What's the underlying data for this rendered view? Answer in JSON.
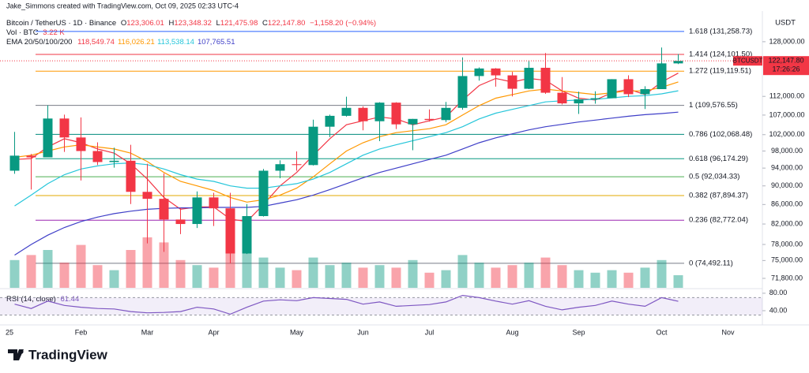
{
  "header": {
    "credit": "Jake_Simmons created with TradingView.com, Oct 09, 2025 02:33 UTC-4",
    "symbol": "Bitcoin / TetherUS · 1D · Binance",
    "ohlc": [
      "O",
      "123,306.01",
      "H",
      "123,348.32",
      "L",
      "121,475.98",
      "C",
      "122,147.80",
      "−1,158.20 (−0.94%)"
    ],
    "volume_label": "Vol · BTC",
    "volume_value": "3.22 K",
    "currency": "USDT"
  },
  "footer": {
    "logo": "TradingView"
  },
  "chart_data": {
    "type": "candlestick",
    "log_scale": true,
    "up_color": "#089981",
    "down_color": "#f23645",
    "categories": [
      "25",
      null,
      null,
      null,
      "Feb",
      null,
      null,
      null,
      "Mar",
      null,
      null,
      null,
      "Apr",
      null,
      null,
      null,
      null,
      "May",
      null,
      null,
      null,
      "Jun",
      null,
      null,
      null,
      "Jul",
      null,
      null,
      null,
      null,
      "Aug",
      null,
      null,
      null,
      "Sep",
      null,
      null,
      null,
      null,
      "Oct",
      null,
      null,
      null,
      "Nov"
    ],
    "open": [
      93400,
      96900,
      96500,
      106100,
      101300,
      98000,
      95400,
      95700,
      88700,
      87200,
      82900,
      82000,
      87500,
      85200,
      76300,
      83600,
      93400,
      94900,
      94700,
      104000,
      106800,
      108900,
      105400,
      110300,
      104600,
      106000,
      105700,
      108900,
      117700,
      119900,
      117900,
      114100,
      120100,
      113000,
      110100,
      111200,
      111500,
      116800,
      112600,
      114000,
      121400,
      null,
      null,
      null
    ],
    "high": [
      102700,
      97300,
      109600,
      107100,
      106400,
      100100,
      98800,
      99500,
      95000,
      92800,
      85300,
      88800,
      88500,
      88500,
      86100,
      93800,
      95800,
      97900,
      105800,
      107100,
      111900,
      109300,
      110400,
      110400,
      106000,
      108500,
      110500,
      123200,
      120200,
      120000,
      118900,
      122300,
      124500,
      117400,
      113300,
      113400,
      116800,
      117900,
      114800,
      126200,
      124200,
      null,
      null,
      null
    ],
    "low": [
      92700,
      89200,
      96500,
      97800,
      91200,
      94700,
      94100,
      86100,
      78200,
      76600,
      80000,
      81200,
      81600,
      74500,
      76200,
      83500,
      91700,
      93400,
      94600,
      101400,
      106600,
      103100,
      100400,
      103400,
      98200,
      105300,
      105200,
      108400,
      116400,
      114700,
      112000,
      114000,
      112700,
      109800,
      107300,
      110000,
      111500,
      111800,
      108600,
      114000,
      121200,
      null,
      null,
      null
    ],
    "close": [
      96900,
      96500,
      106100,
      101300,
      98000,
      95400,
      95700,
      88700,
      87200,
      82900,
      82000,
      87500,
      85200,
      76300,
      83600,
      93400,
      94900,
      94700,
      104000,
      106800,
      108900,
      105400,
      110300,
      104600,
      106000,
      105700,
      108900,
      117700,
      119900,
      117900,
      114100,
      120100,
      113000,
      110100,
      111200,
      111500,
      116800,
      112600,
      114000,
      121400,
      122147.8,
      null,
      null,
      null
    ],
    "ylim": [
      70160,
      136900
    ],
    "yticks": [
      {
        "value": 128000,
        "label": "128,000.00"
      },
      {
        "value": 112000,
        "label": "112,000.00"
      },
      {
        "value": 107000,
        "label": "107,000.00"
      },
      {
        "value": 102000,
        "label": "102,000.00"
      },
      {
        "value": 98000,
        "label": "98,000.00"
      },
      {
        "value": 94000,
        "label": "94,000.00"
      },
      {
        "value": 90000,
        "label": "90,000.00"
      },
      {
        "value": 86000,
        "label": "86,000.00"
      },
      {
        "value": 82000,
        "label": "82,000.00"
      },
      {
        "value": 78000,
        "label": "78,000.00"
      },
      {
        "value": 75000,
        "label": "75,000.00"
      },
      {
        "value": 71800,
        "label": "71,800.00"
      }
    ],
    "last_price": {
      "value": 122147.8,
      "label": "122,147.80",
      "symbol": "BTCUSDT",
      "countdown": "17:26:26",
      "color": "#f23645"
    },
    "fib": [
      {
        "value": 131258.73,
        "label": "1.618 (131,258.73)",
        "color": "#2962ff"
      },
      {
        "value": 124101.5,
        "label": "1.414 (124,101.50)",
        "color": "#f23645"
      },
      {
        "value": 119119.51,
        "label": "1.272 (119,119.51)",
        "color": "#ff9800"
      },
      {
        "value": 109576.55,
        "label": "1 (109,576.55)",
        "color": "#787b86"
      },
      {
        "value": 102068.48,
        "label": "0.786 (102,068.48)",
        "color": "#00897b"
      },
      {
        "value": 96174.29,
        "label": "0.618 (96,174.29)",
        "color": "#089981"
      },
      {
        "value": 92034.33,
        "label": "0.5 (92,034.33)",
        "color": "#4caf50"
      },
      {
        "value": 87894.37,
        "label": "0.382 (87,894.37)",
        "color": "#e0a800"
      },
      {
        "value": 82772.04,
        "label": "0.236 (82,772.04)",
        "color": "#9c27b0"
      },
      {
        "value": 74492.11,
        "label": "0 (74,492.11)",
        "color": "#787b86"
      }
    ],
    "ema": {
      "label": "EMA 20/50/100/200",
      "lines": [
        {
          "color": "#f23645",
          "value_label": "118,549.74",
          "values": [
            96000,
            96200,
            99000,
            101000,
            100000,
            98500,
            97500,
            95000,
            91500,
            87500,
            85000,
            85500,
            85500,
            83000,
            82500,
            86000,
            90000,
            93000,
            97000,
            101000,
            104500,
            105500,
            106500,
            106000,
            104500,
            105500,
            106500,
            111000,
            115000,
            117000,
            116000,
            117000,
            116500,
            113500,
            111500,
            111000,
            113000,
            114000,
            112500,
            116000,
            118549.74,
            null,
            null,
            null
          ]
        },
        {
          "color": "#ff9800",
          "value_label": "116,026.21",
          "values": [
            96500,
            97000,
            98000,
            99000,
            99500,
            99000,
            98500,
            97500,
            95500,
            93000,
            91000,
            90000,
            89000,
            87500,
            86500,
            87000,
            88000,
            89500,
            92000,
            95000,
            98000,
            100000,
            101500,
            102500,
            103000,
            103500,
            104500,
            107000,
            109500,
            111500,
            112500,
            113500,
            114000,
            113500,
            113000,
            112500,
            113000,
            113500,
            113500,
            114500,
            116026.21,
            null,
            null,
            null
          ]
        },
        {
          "color": "#26c6da",
          "value_label": "113,538.14",
          "values": [
            85700,
            88000,
            90500,
            92500,
            93800,
            94500,
            95000,
            95200,
            94800,
            93800,
            92500,
            91500,
            91000,
            90000,
            89500,
            89500,
            90000,
            90500,
            91500,
            93000,
            95000,
            97000,
            98500,
            99500,
            100500,
            101500,
            102500,
            104000,
            106000,
            107500,
            108500,
            109500,
            110500,
            110800,
            111000,
            111200,
            111600,
            112000,
            112200,
            112700,
            113538.14,
            null,
            null,
            null
          ]
        },
        {
          "color": "#3f3fc8",
          "value_label": "107,765.51",
          "values": [
            76000,
            78000,
            79800,
            81300,
            82500,
            83400,
            84100,
            84600,
            85000,
            85200,
            85300,
            85300,
            85400,
            85400,
            85400,
            85600,
            86300,
            87000,
            88000,
            89200,
            90500,
            91800,
            93000,
            94000,
            95000,
            96000,
            97000,
            98500,
            100000,
            101200,
            102200,
            103200,
            104000,
            104600,
            105200,
            105700,
            106200,
            106700,
            107100,
            107400,
            107765.51,
            null,
            null,
            null
          ]
        }
      ]
    },
    "volume": {
      "values": [
        22,
        26,
        30,
        20,
        34,
        18,
        14,
        30,
        40,
        36,
        22,
        18,
        16,
        38,
        28,
        24,
        16,
        14,
        24,
        18,
        20,
        16,
        18,
        16,
        22,
        12,
        14,
        26,
        20,
        16,
        18,
        20,
        24,
        18,
        14,
        12,
        14,
        12,
        16,
        22,
        10,
        null,
        null,
        null
      ]
    },
    "rsi": {
      "label": "RSI (14, close)",
      "value_label": "61.44",
      "color": "#7e57c2",
      "band": [
        30,
        70
      ],
      "ylim": [
        11,
        87
      ],
      "yticks": [
        {
          "value": 80,
          "label": "80.00"
        },
        {
          "value": 40,
          "label": "40.00"
        }
      ],
      "values": [
        55,
        45,
        62,
        52,
        48,
        45,
        44,
        38,
        35,
        36,
        38,
        48,
        44,
        32,
        48,
        62,
        65,
        63,
        70,
        68,
        66,
        55,
        60,
        50,
        52,
        54,
        60,
        75,
        70,
        62,
        55,
        63,
        50,
        42,
        48,
        52,
        62,
        55,
        50,
        70,
        61.44,
        null,
        null,
        null
      ]
    }
  }
}
